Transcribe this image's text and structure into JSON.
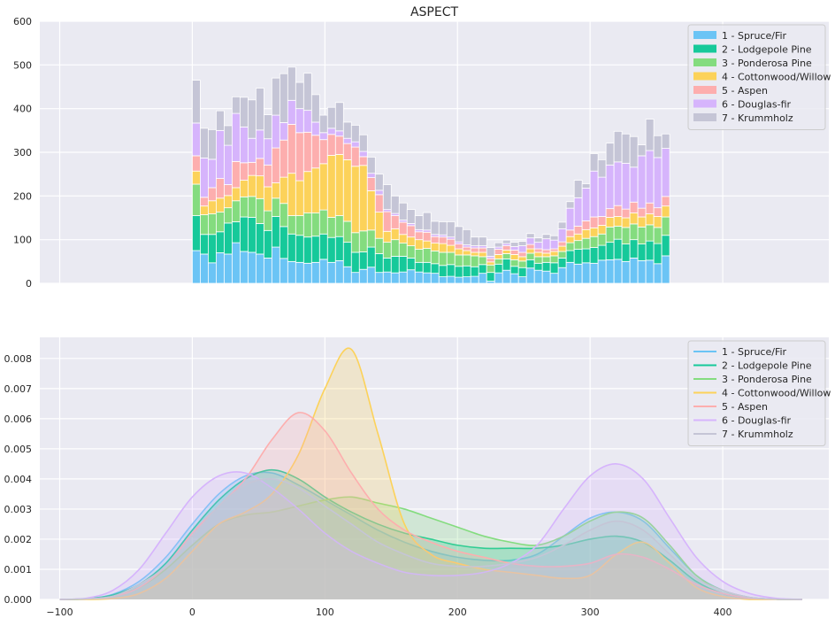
{
  "chart_data": [
    {
      "type": "bar",
      "stacked": true,
      "title": "ASPECT",
      "xlabel": "",
      "ylabel": "",
      "xlim": [
        -115,
        480
      ],
      "ylim": [
        0,
        600
      ],
      "bin_width": 6,
      "x_ticks": [],
      "y_ticks": [
        "0",
        "100",
        "200",
        "300",
        "400",
        "500",
        "600"
      ],
      "grid": true,
      "legend_position": "top-right",
      "bin_starts": [
        0,
        6,
        12,
        18,
        24,
        30,
        36,
        42,
        48,
        54,
        60,
        66,
        72,
        78,
        84,
        90,
        96,
        102,
        108,
        114,
        120,
        126,
        132,
        138,
        144,
        150,
        156,
        162,
        168,
        174,
        180,
        186,
        192,
        198,
        204,
        210,
        216,
        222,
        228,
        234,
        240,
        246,
        252,
        258,
        264,
        270,
        276,
        282,
        288,
        294,
        300,
        306,
        312,
        318,
        324,
        330,
        336,
        342,
        348,
        354
      ],
      "series": [
        {
          "name": "1 - Spruce/Fir",
          "color": "#6bc4f5",
          "values": [
            75,
            67,
            47,
            70,
            67,
            93,
            73,
            71,
            67,
            58,
            83,
            57,
            50,
            48,
            46,
            48,
            55,
            48,
            52,
            38,
            25,
            32,
            37,
            25,
            26,
            24,
            26,
            31,
            26,
            24,
            23,
            15,
            16,
            14,
            15,
            16,
            23,
            5,
            24,
            30,
            22,
            15,
            35,
            30,
            28,
            23,
            36,
            48,
            44,
            47,
            46,
            53,
            54,
            55,
            50,
            58,
            52,
            53,
            45,
            63
          ]
        },
        {
          "name": "2 - Lodgepole Pine",
          "color": "#16c99a",
          "values": [
            80,
            45,
            65,
            48,
            71,
            48,
            79,
            80,
            70,
            63,
            70,
            73,
            63,
            62,
            60,
            60,
            58,
            57,
            55,
            56,
            46,
            40,
            46,
            43,
            32,
            38,
            36,
            27,
            22,
            24,
            22,
            26,
            27,
            25,
            25,
            22,
            20,
            20,
            20,
            26,
            17,
            21,
            19,
            16,
            20,
            24,
            22,
            27,
            34,
            32,
            36,
            34,
            40,
            46,
            40,
            42,
            38,
            44,
            46,
            47
          ]
        },
        {
          "name": "3 - Ponderosa Pine",
          "color": "#84dc7f",
          "values": [
            72,
            45,
            47,
            45,
            35,
            48,
            46,
            48,
            57,
            45,
            42,
            53,
            42,
            45,
            55,
            53,
            55,
            46,
            48,
            48,
            45,
            48,
            39,
            35,
            36,
            38,
            30,
            28,
            30,
            32,
            29,
            30,
            28,
            26,
            25,
            25,
            18,
            17,
            12,
            12,
            15,
            15,
            15,
            15,
            13,
            16,
            15,
            18,
            20,
            24,
            25,
            26,
            35,
            30,
            38,
            36,
            39,
            37,
            37,
            42
          ]
        },
        {
          "name": "4 - Cottonwood/Willow",
          "color": "#fcd25a",
          "values": [
            30,
            20,
            30,
            32,
            28,
            30,
            38,
            48,
            52,
            55,
            35,
            60,
            97,
            80,
            95,
            103,
            106,
            142,
            140,
            141,
            152,
            150,
            90,
            60,
            25,
            25,
            20,
            20,
            22,
            17,
            18,
            20,
            16,
            14,
            10,
            8,
            10,
            7,
            10,
            8,
            12,
            10,
            10,
            10,
            8,
            10,
            12,
            14,
            15,
            20,
            20,
            20,
            22,
            22,
            22,
            25,
            23,
            25,
            25,
            25
          ]
        },
        {
          "name": "5 - Aspen",
          "color": "#fdaeae",
          "values": [
            35,
            20,
            30,
            45,
            25,
            60,
            40,
            30,
            40,
            50,
            80,
            85,
            112,
            110,
            90,
            75,
            55,
            48,
            42,
            37,
            44,
            20,
            30,
            40,
            45,
            30,
            28,
            26,
            18,
            20,
            15,
            15,
            14,
            11,
            8,
            10,
            10,
            8,
            12,
            10,
            10,
            10,
            10,
            8,
            8,
            6,
            10,
            15,
            18,
            20,
            25,
            20,
            20,
            25,
            20,
            25,
            20,
            25,
            20,
            22
          ]
        },
        {
          "name": "6 - Douglas-fir",
          "color": "#d6b4fc",
          "values": [
            75,
            90,
            65,
            110,
            90,
            110,
            82,
            55,
            65,
            60,
            75,
            40,
            55,
            55,
            50,
            30,
            16,
            14,
            12,
            12,
            12,
            12,
            10,
            10,
            5,
            5,
            5,
            5,
            5,
            5,
            5,
            5,
            5,
            5,
            5,
            5,
            5,
            5,
            5,
            5,
            8,
            15,
            15,
            15,
            25,
            20,
            30,
            50,
            65,
            75,
            105,
            90,
            100,
            100,
            105,
            80,
            120,
            120,
            115,
            110
          ]
        },
        {
          "name": "7 - Krummholz",
          "color": "#c5c5d6",
          "values": [
            98,
            68,
            68,
            45,
            45,
            38,
            68,
            88,
            96,
            55,
            85,
            112,
            76,
            60,
            85,
            63,
            40,
            48,
            65,
            37,
            38,
            38,
            37,
            37,
            57,
            40,
            39,
            32,
            32,
            40,
            30,
            30,
            35,
            35,
            35,
            20,
            20,
            20,
            10,
            8,
            10,
            10,
            10,
            10,
            10,
            10,
            15,
            15,
            40,
            10,
            40,
            40,
            50,
            70,
            67,
            70,
            25,
            72,
            50,
            33
          ]
        }
      ]
    },
    {
      "type": "area",
      "subtype": "kde",
      "title": "",
      "xlabel": "",
      "ylabel": "",
      "xlim": [
        -115,
        480
      ],
      "ylim": [
        0,
        0.0087
      ],
      "x_ticks": [
        "−100",
        "0",
        "100",
        "200",
        "300",
        "400"
      ],
      "y_ticks": [
        "0.000",
        "0.001",
        "0.002",
        "0.003",
        "0.004",
        "0.005",
        "0.006",
        "0.007",
        "0.008"
      ],
      "grid": true,
      "legend_position": "top-right",
      "x": [
        -100,
        -80,
        -60,
        -40,
        -20,
        0,
        20,
        40,
        60,
        80,
        100,
        120,
        140,
        160,
        180,
        200,
        220,
        240,
        260,
        280,
        300,
        320,
        340,
        360,
        380,
        400,
        420,
        440,
        460
      ],
      "series": [
        {
          "name": "1 - Spruce/Fir",
          "color": "#6bc4f5",
          "values": [
            0,
            2e-05,
            0.00017,
            0.0006,
            0.0014,
            0.0025,
            0.0035,
            0.0041,
            0.0042,
            0.0038,
            0.0033,
            0.0028,
            0.0023,
            0.0019,
            0.0016,
            0.0014,
            0.0013,
            0.0013,
            0.0015,
            0.0021,
            0.0027,
            0.0029,
            0.0026,
            0.0017,
            0.0008,
            0.0003,
            7e-05,
            1e-05,
            0
          ]
        },
        {
          "name": "2 - Lodgepole Pine",
          "color": "#16c99a",
          "values": [
            0,
            2e-05,
            0.00015,
            0.0005,
            0.0012,
            0.0023,
            0.0033,
            0.004,
            0.0043,
            0.004,
            0.0034,
            0.0029,
            0.0025,
            0.0022,
            0.002,
            0.0018,
            0.0017,
            0.0017,
            0.0017,
            0.0018,
            0.002,
            0.0021,
            0.0019,
            0.0013,
            0.0006,
            0.0002,
            5e-05,
            1e-05,
            0
          ]
        },
        {
          "name": "3 - Ponderosa Pine",
          "color": "#84dc7f",
          "values": [
            0,
            1e-05,
            0.0001,
            0.0004,
            0.001,
            0.0018,
            0.0025,
            0.0028,
            0.0029,
            0.0031,
            0.0033,
            0.0034,
            0.0032,
            0.003,
            0.0027,
            0.0024,
            0.0021,
            0.0019,
            0.0018,
            0.0021,
            0.0026,
            0.0029,
            0.0027,
            0.0018,
            0.0008,
            0.0003,
            7e-05,
            1e-05,
            0
          ]
        },
        {
          "name": "4 - Cottonwood/Willow",
          "color": "#fcd25a",
          "values": [
            0,
            0,
            3e-05,
            0.0002,
            0.0007,
            0.0016,
            0.0025,
            0.0029,
            0.0035,
            0.0048,
            0.007,
            0.0083,
            0.0055,
            0.0025,
            0.0015,
            0.0012,
            0.001,
            0.0009,
            0.0008,
            0.0007,
            0.0008,
            0.0015,
            0.0019,
            0.0012,
            0.0004,
            0.0001,
            0,
            0,
            0
          ]
        },
        {
          "name": "5 - Aspen",
          "color": "#fdaeae",
          "values": [
            0,
            2e-05,
            0.0001,
            0.0004,
            0.0011,
            0.0022,
            0.0031,
            0.004,
            0.0053,
            0.0062,
            0.0056,
            0.0042,
            0.003,
            0.0023,
            0.0019,
            0.0016,
            0.0014,
            0.0012,
            0.0011,
            0.0011,
            0.0012,
            0.0015,
            0.0014,
            0.001,
            0.0005,
            0.0002,
            5e-05,
            1e-05,
            0
          ]
        },
        {
          "name": "6 - Douglas-fir",
          "color": "#d6b4fc",
          "values": [
            0,
            4e-05,
            0.0003,
            0.001,
            0.0022,
            0.0034,
            0.0041,
            0.0042,
            0.0037,
            0.003,
            0.0022,
            0.0016,
            0.0012,
            0.0009,
            0.0008,
            0.0008,
            0.0009,
            0.0012,
            0.0018,
            0.003,
            0.0041,
            0.0045,
            0.004,
            0.0027,
            0.0014,
            0.0006,
            0.0002,
            4e-05,
            0
          ]
        },
        {
          "name": "7 - Krummholz",
          "color": "#c5c5d6",
          "values": [
            0,
            2e-05,
            0.0001,
            0.0005,
            0.0011,
            0.0021,
            0.0031,
            0.0038,
            0.004,
            0.0037,
            0.0031,
            0.0025,
            0.0019,
            0.0015,
            0.0012,
            0.0011,
            0.0011,
            0.0012,
            0.0014,
            0.0018,
            0.0023,
            0.0026,
            0.0023,
            0.0015,
            0.0007,
            0.0003,
            7e-05,
            1e-05,
            0
          ]
        }
      ]
    }
  ]
}
